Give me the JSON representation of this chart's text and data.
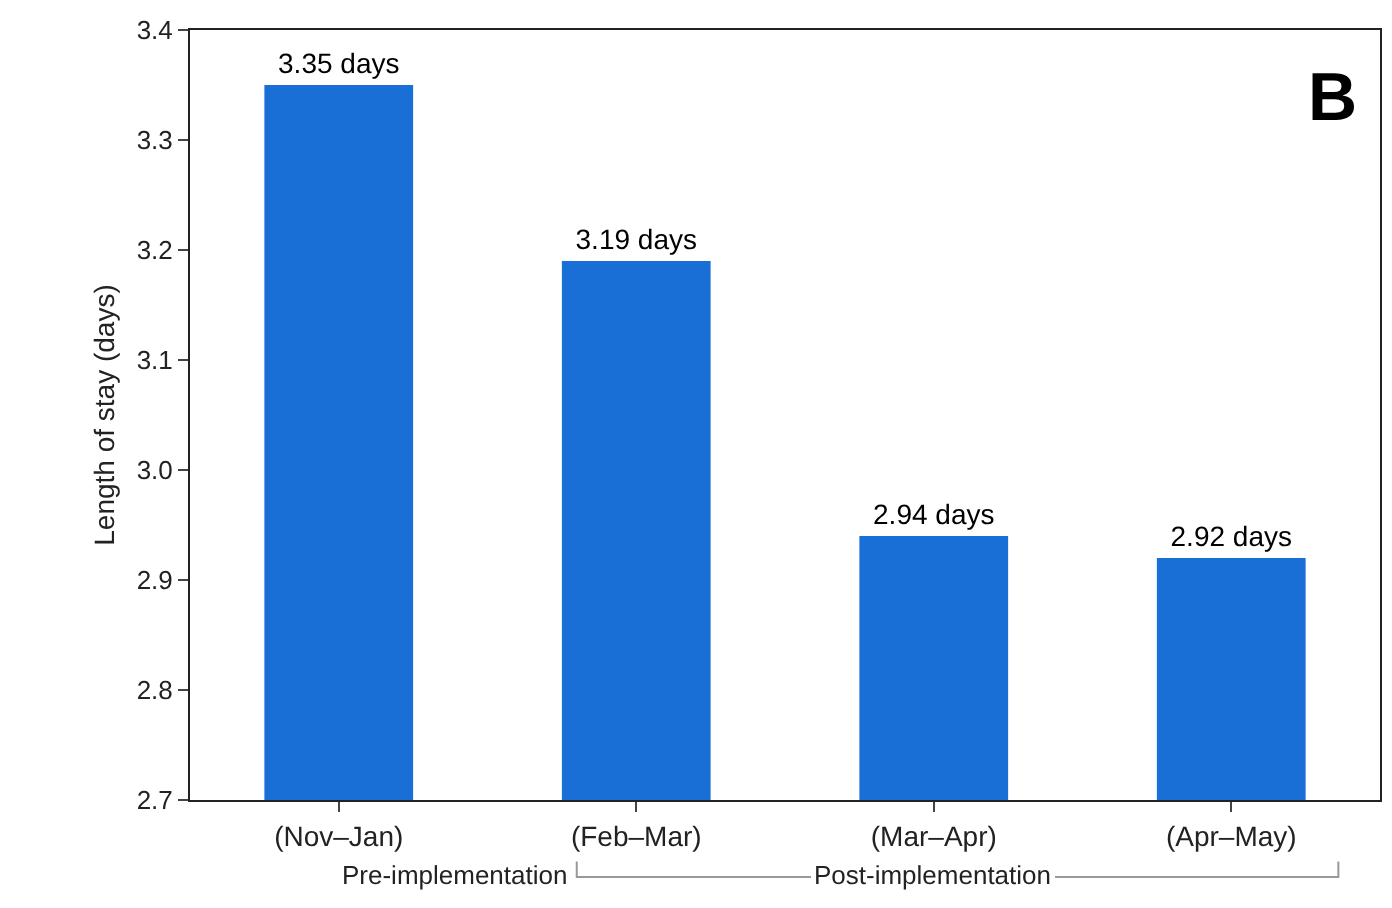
{
  "chart_data": {
    "type": "bar",
    "ylabel": "Length of stay (days)",
    "categories": [
      "(Nov–Jan)",
      "(Feb–Mar)",
      "(Mar–Apr)",
      "(Apr–May)"
    ],
    "values": [
      3.35,
      3.19,
      2.94,
      2.92
    ],
    "value_labels": [
      "3.35 days",
      "3.19 days",
      "2.94 days",
      "2.92 days"
    ],
    "color": "#1a6fd6",
    "ylim": [
      2.7,
      3.4
    ],
    "yticks": [
      2.7,
      2.8,
      2.9,
      {
        "value": 3,
        "label": "3.0"
      },
      3.1,
      3.2,
      3.3,
      3.4
    ],
    "annotations": [
      "Pre-implementation",
      "Post-implementation",
      "B"
    ]
  }
}
